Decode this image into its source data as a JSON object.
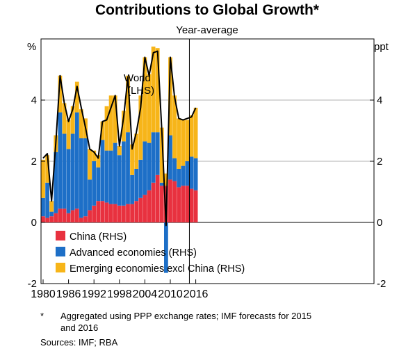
{
  "chart_data": {
    "type": "bar",
    "title": "Contributions to Global Growth*",
    "subtitle": "Year-average",
    "ylabel_left": "%",
    "ylabel_right": "ppt",
    "ylim": [
      -2,
      6
    ],
    "yticks": [
      -2,
      0,
      2,
      4
    ],
    "ytick_labels": [
      "-2",
      "0",
      "2",
      "4"
    ],
    "xtick_labels": [
      {
        "year": 1980,
        "label": "1980"
      },
      {
        "year": 1986,
        "label": "1986"
      },
      {
        "year": 1992,
        "label": "1992"
      },
      {
        "year": 1998,
        "label": "1998"
      },
      {
        "year": 2004,
        "label": "2004"
      },
      {
        "year": 2010,
        "label": "2010"
      },
      {
        "year": 2016,
        "label": "2016"
      }
    ],
    "forecast_divider_year": 2014.5,
    "categories": [
      1980,
      1981,
      1982,
      1983,
      1984,
      1985,
      1986,
      1987,
      1988,
      1989,
      1990,
      1991,
      1992,
      1993,
      1994,
      1995,
      1996,
      1997,
      1998,
      1999,
      2000,
      2001,
      2002,
      2003,
      2004,
      2005,
      2006,
      2007,
      2008,
      2009,
      2010,
      2011,
      2012,
      2013,
      2014,
      2015,
      2016
    ],
    "series": [
      {
        "name": "China (RHS)",
        "color": "#e8313f",
        "values": [
          0.2,
          0.15,
          0.2,
          0.3,
          0.45,
          0.45,
          0.3,
          0.4,
          0.45,
          0.15,
          0.2,
          0.4,
          0.55,
          0.7,
          0.7,
          0.65,
          0.6,
          0.6,
          0.55,
          0.55,
          0.6,
          0.6,
          0.7,
          0.8,
          0.9,
          1.05,
          1.3,
          1.55,
          1.2,
          1.2,
          1.4,
          1.35,
          1.15,
          1.2,
          1.2,
          1.1,
          1.05
        ]
      },
      {
        "name": "Advanced economies (RHS)",
        "color": "#1d6fc7",
        "values": [
          0.6,
          1.15,
          0.15,
          2.0,
          3.15,
          2.45,
          2.1,
          2.5,
          3.15,
          2.6,
          2.55,
          1.0,
          1.45,
          1.1,
          2.0,
          1.7,
          1.75,
          2.0,
          1.65,
          2.1,
          2.35,
          0.95,
          1.05,
          1.25,
          1.75,
          1.55,
          1.65,
          1.4,
          0.1,
          -1.65,
          1.45,
          0.75,
          0.6,
          0.65,
          0.8,
          1.05,
          1.05
        ]
      },
      {
        "name": "Emerging economies excl China (RHS)",
        "color": "#f7b519",
        "values": [
          1.25,
          0.9,
          0.35,
          0.55,
          1.2,
          1.0,
          0.95,
          0.9,
          1.0,
          0.95,
          0.65,
          1.0,
          0.35,
          0.4,
          0.6,
          1.45,
          1.8,
          1.55,
          0.3,
          1.0,
          1.85,
          1.0,
          1.15,
          2.1,
          2.75,
          2.25,
          2.8,
          2.75,
          1.8,
          0.4,
          2.55,
          2.05,
          1.65,
          1.5,
          1.35,
          1.35,
          1.65
        ]
      },
      {
        "name": "World",
        "color": "#000000",
        "values": [
          2.1,
          2.25,
          0.7,
          2.6,
          4.8,
          3.9,
          3.3,
          3.7,
          4.45,
          3.75,
          3.1,
          2.4,
          2.3,
          2.1,
          3.3,
          3.35,
          3.75,
          4.15,
          2.5,
          3.45,
          4.75,
          2.4,
          2.95,
          3.75,
          5.4,
          4.8,
          5.55,
          5.6,
          3.0,
          -0.1,
          5.4,
          4.1,
          3.4,
          3.35,
          3.4,
          3.45,
          3.75
        ]
      }
    ],
    "annotations": {
      "world_label": "World",
      "world_label_sub": "(LHS)"
    },
    "notes": {
      "asterisk": "*",
      "note_line1": "Aggregated using PPP exchange rates; IMF forecasts for 2015",
      "note_line2": "and 2016",
      "sources": "Sources:  IMF; RBA"
    }
  }
}
